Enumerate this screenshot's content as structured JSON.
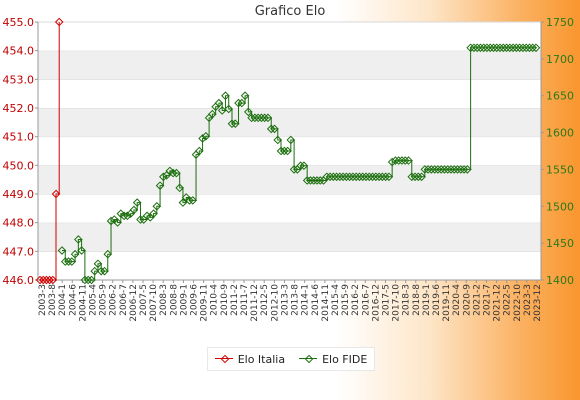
{
  "chart_data": {
    "type": "line",
    "title": "Grafico Elo",
    "left_axis": {
      "ylim": [
        446.0,
        455.0
      ],
      "ticks": [
        "446.0",
        "447.0",
        "448.0",
        "449.0",
        "450.0",
        "451.0",
        "452.0",
        "453.0",
        "454.0",
        "455.0"
      ]
    },
    "right_axis": {
      "ylim": [
        1400,
        1750
      ],
      "ticks": [
        "1400",
        "1450",
        "1500",
        "1550",
        "1600",
        "1650",
        "1700",
        "1750"
      ]
    },
    "x_labels": [
      "2003-3",
      "2003-8",
      "2004-1",
      "2004-6",
      "2004-11",
      "2005-4",
      "2005-9",
      "2006-2",
      "2006-7",
      "2006-12",
      "2007-5",
      "2007-10",
      "2008-3",
      "2008-8",
      "2009-1",
      "2009-6",
      "2009-11",
      "2010-4",
      "2010-9",
      "2011-2",
      "2011-7",
      "2011-12",
      "2012-5",
      "2012-10",
      "2013-3",
      "2013-8",
      "2014-1",
      "2014-6",
      "2014-11",
      "2015-4",
      "2015-9",
      "2016-2",
      "2016-7",
      "2016-12",
      "2017-5",
      "2017-10",
      "2018-3",
      "2018-8",
      "2019-1",
      "2019-6",
      "2019-11",
      "2020-4",
      "2020-9",
      "2021-2",
      "2021-7",
      "2021-12",
      "2022-5",
      "2022-10",
      "2023-3",
      "2023-12"
    ],
    "grid": "horizontal bands",
    "legend": "bottom-center",
    "colors": {
      "italia": "#d00000",
      "fide": "#1a6e0c"
    },
    "series": [
      {
        "name": "Elo Italia",
        "axis": "left",
        "values": [
          446.0,
          446.0,
          446.0,
          446.0,
          446.0,
          449.0,
          455.0
        ]
      },
      {
        "name": "Elo FIDE",
        "axis": "right",
        "values": [
          1440,
          1425,
          1425,
          1425,
          1435,
          1455,
          1440,
          1400,
          1400,
          1400,
          1412,
          1422,
          1412,
          1412,
          1435,
          1480,
          1482,
          1478,
          1490,
          1487,
          1487,
          1490,
          1495,
          1505,
          1482,
          1482,
          1487,
          1485,
          1490,
          1500,
          1528,
          1540,
          1542,
          1548,
          1545,
          1545,
          1525,
          1505,
          1512,
          1508,
          1508,
          1570,
          1575,
          1592,
          1595,
          1620,
          1625,
          1635,
          1640,
          1630,
          1650,
          1632,
          1612,
          1612,
          1640,
          1640,
          1650,
          1628,
          1620,
          1620,
          1620,
          1620,
          1620,
          1620,
          1605,
          1605,
          1590,
          1575,
          1575,
          1575,
          1590,
          1550,
          1550,
          1555,
          1555,
          1535,
          1535,
          1535,
          1535,
          1535,
          1535,
          1540,
          1540,
          1540,
          1540,
          1540,
          1540,
          1540,
          1540,
          1540,
          1540,
          1540,
          1540,
          1540,
          1540,
          1540,
          1540,
          1540,
          1540,
          1540,
          1540,
          1560,
          1562,
          1562,
          1562,
          1562,
          1562,
          1540,
          1540,
          1540,
          1540,
          1550,
          1550,
          1550,
          1550,
          1550,
          1550,
          1550,
          1550,
          1550,
          1550,
          1550,
          1550,
          1550,
          1550,
          1715,
          1715,
          1715,
          1715,
          1715,
          1715,
          1715,
          1715,
          1715,
          1715,
          1715,
          1715,
          1715,
          1715,
          1715,
          1715,
          1715,
          1715,
          1715,
          1715,
          1715
        ]
      }
    ]
  }
}
